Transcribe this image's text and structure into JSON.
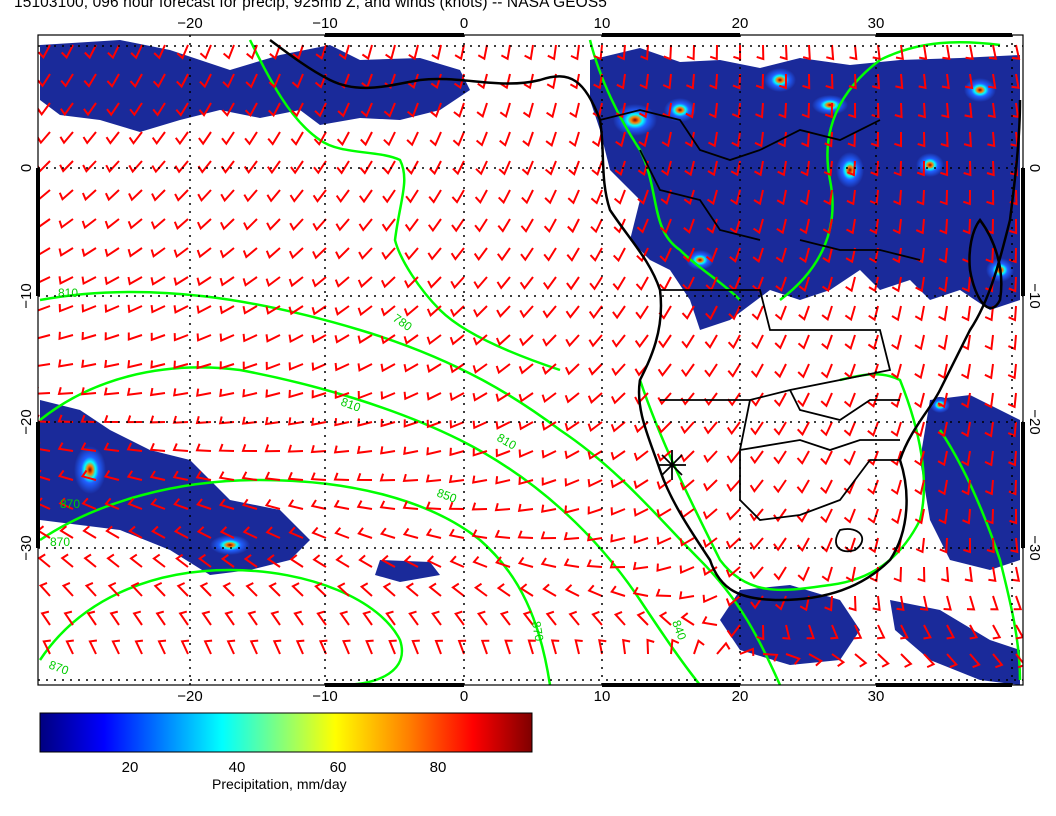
{
  "title": "15103100, 096 hour forecast for precip, 925mb Z, and winds (knots) -- NASA GEOS5",
  "map": {
    "lon_ticks": [
      "−20",
      "−10",
      "0",
      "10",
      "20",
      "30"
    ],
    "lat_ticks": [
      "0",
      "−10",
      "−20",
      "−30"
    ],
    "contour_labels": [
      "810",
      "780",
      "810",
      "810",
      "850",
      "870",
      "870",
      "870",
      "840",
      "870"
    ],
    "colors": {
      "winds": "#ff0000",
      "contours": "#00ff00",
      "coastlines": "#000000",
      "precip_low": "#1a2a9a",
      "precip_high": "#c00000"
    },
    "layers": [
      "precipitation-shading",
      "925mb-height-contours",
      "wind-barbs",
      "coastlines-borders",
      "graticule"
    ]
  },
  "colorbar": {
    "ticks": [
      "20",
      "40",
      "60",
      "80"
    ],
    "title": "Precipitation, mm/day",
    "range": [
      0,
      100
    ],
    "stops": [
      "#00007f",
      "#0000ff",
      "#00ffff",
      "#ffff00",
      "#ff7f00",
      "#ff0000",
      "#7f0000"
    ]
  }
}
